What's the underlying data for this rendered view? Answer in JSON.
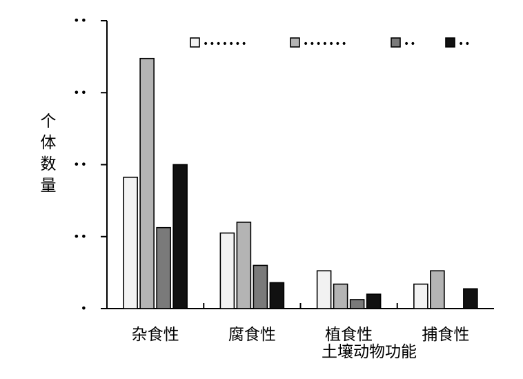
{
  "chart_data": {
    "type": "bar",
    "title": "",
    "xlabel": "土壤动物功能",
    "ylabel": "个体数量",
    "ylim": [
      0,
      8
    ],
    "yticks": [
      0,
      2,
      4,
      6,
      8
    ],
    "ytick_labels": [
      "•",
      "••",
      "••",
      "••",
      "••"
    ],
    "categories": [
      "杂食性",
      "腐食性",
      "植食性",
      "捕食性"
    ],
    "series": [
      {
        "name": "□•••••••",
        "color": "#f2f2f2",
        "values": [
          3.65,
          2.1,
          1.05,
          0.68
        ]
      },
      {
        "name": "□•••••••",
        "color": "#b4b4b4",
        "values": [
          6.95,
          2.4,
          0.68,
          1.05
        ]
      },
      {
        "name": "□••",
        "color": "#7a7a7a",
        "values": [
          2.25,
          1.2,
          0.25,
          0
        ]
      },
      {
        "name": "■••",
        "color": "#111111",
        "values": [
          4.0,
          0.72,
          0.4,
          0.55
        ]
      }
    ],
    "legend_position": "top-right",
    "grid": false
  }
}
